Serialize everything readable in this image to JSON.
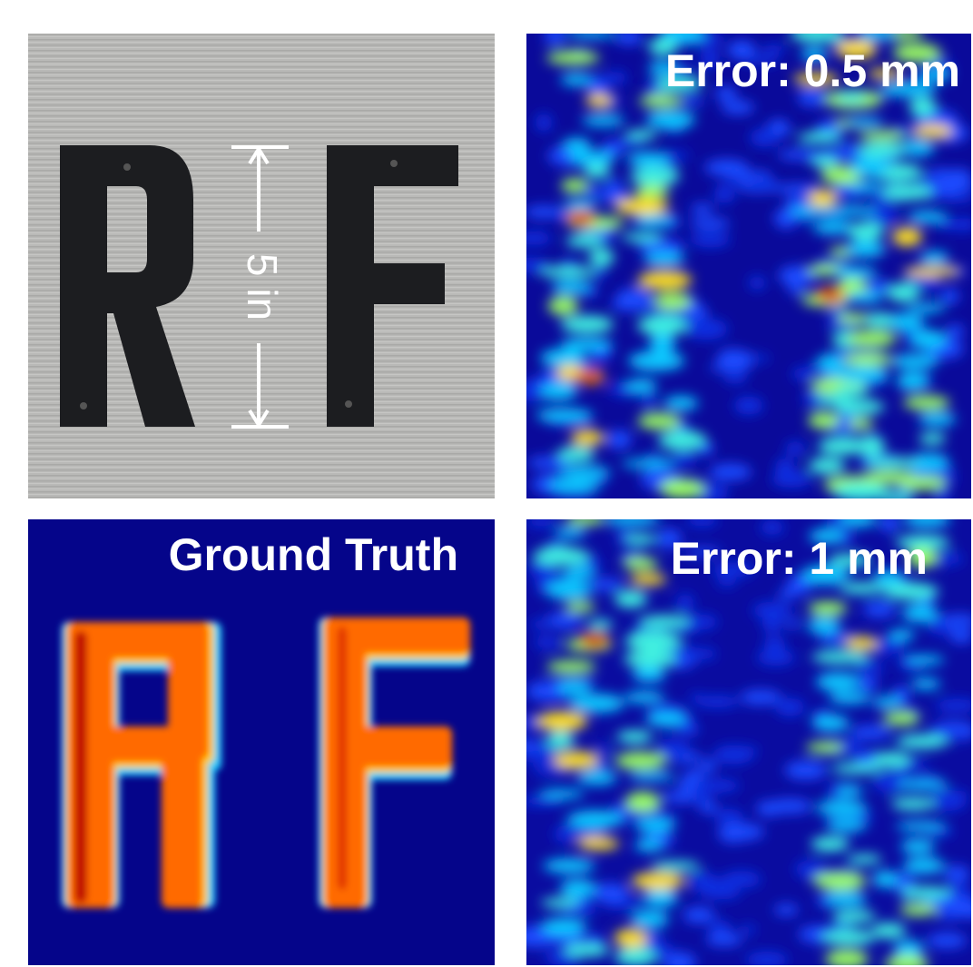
{
  "photo": {
    "dimension_label": "5 in"
  },
  "panels": [
    {
      "label": "Error: 0.5 mm"
    },
    {
      "label": "Ground Truth"
    },
    {
      "label": "Error: 1 mm"
    }
  ]
}
